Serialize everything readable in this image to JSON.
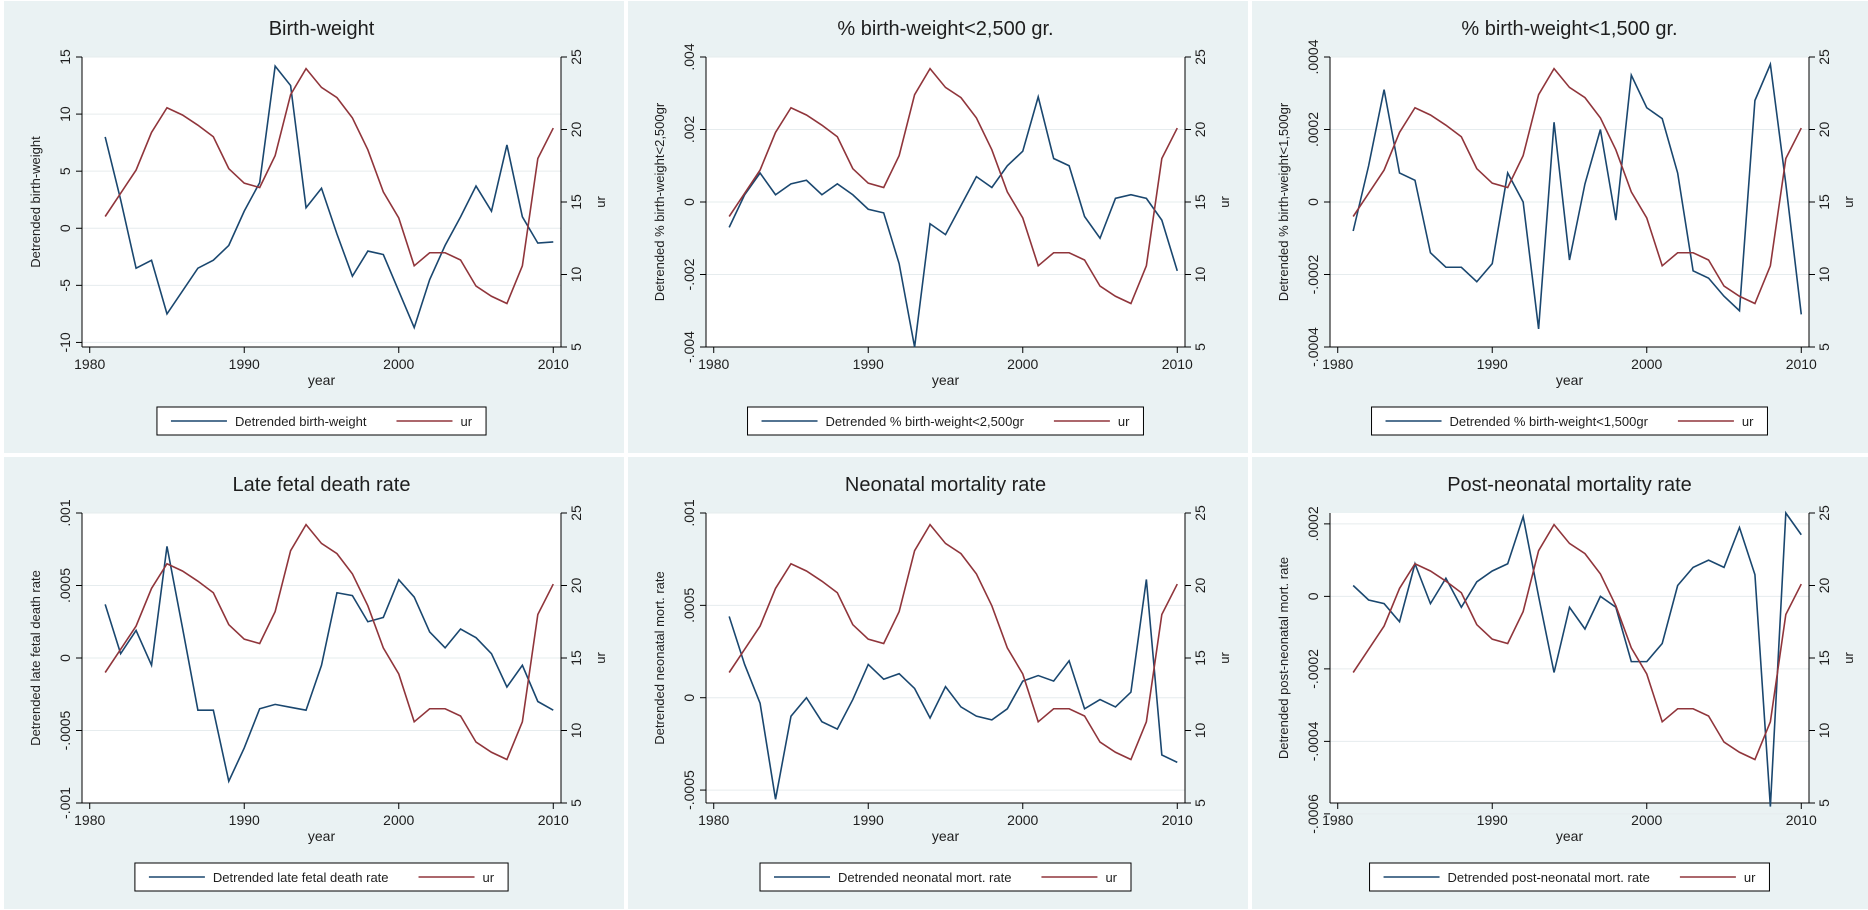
{
  "chart_data": [
    {
      "type": "line",
      "title": "Birth-weight",
      "xlabel": "year",
      "ylabel": "Detrended birth-weight",
      "y2label": "ur",
      "x": [
        1981,
        1982,
        1983,
        1984,
        1985,
        1986,
        1987,
        1988,
        1989,
        1990,
        1991,
        1992,
        1993,
        1994,
        1995,
        1996,
        1997,
        1998,
        1999,
        2000,
        2001,
        2002,
        2003,
        2004,
        2005,
        2006,
        2007,
        2008,
        2009,
        2010
      ],
      "xlim": [
        1979.5,
        2010.5
      ],
      "xticks": [
        1980,
        1990,
        2000,
        2010
      ],
      "ylim": [
        -10.4,
        15
      ],
      "yticks": [
        15,
        10,
        5,
        0,
        -5,
        -10
      ],
      "y2lim": [
        5,
        25
      ],
      "y2ticks": [
        25,
        20,
        15,
        10,
        5
      ],
      "grid": true,
      "legend": "bottom",
      "series": [
        {
          "name": "Detrended birth-weight",
          "color": "#1a476f",
          "values": [
            8,
            2.5,
            -3.5,
            -2.8,
            -7.5,
            -5.5,
            -3.5,
            -2.8,
            -1.5,
            1.5,
            4,
            14.2,
            12.5,
            1.8,
            3.5,
            -0.5,
            -4.2,
            -2,
            -2.3,
            -5.5,
            -8.7,
            -4.5,
            -1.5,
            1,
            3.7,
            1.5,
            7.3,
            1,
            -1.3,
            -1.2
          ]
        },
        {
          "name": "ur",
          "color": "#90353b",
          "axis": "y2",
          "values": [
            14,
            15.6,
            17.2,
            19.8,
            21.5,
            21,
            20.3,
            19.5,
            17.3,
            16.3,
            16,
            18.2,
            22.4,
            24.2,
            22.9,
            22.2,
            20.8,
            18.6,
            15.7,
            13.9,
            10.6,
            11.5,
            11.5,
            11,
            9.2,
            8.5,
            8,
            10.6,
            18,
            20.1
          ]
        }
      ]
    },
    {
      "type": "line",
      "title": "% birth-weight<2,500 gr.",
      "xlabel": "year",
      "ylabel": "Detrended % birth-weight<2,500gr",
      "y2label": "ur",
      "x": [
        1981,
        1982,
        1983,
        1984,
        1985,
        1986,
        1987,
        1988,
        1989,
        1990,
        1991,
        1992,
        1993,
        1994,
        1995,
        1996,
        1997,
        1998,
        1999,
        2000,
        2001,
        2002,
        2003,
        2004,
        2005,
        2006,
        2007,
        2008,
        2009,
        2010
      ],
      "xlim": [
        1979.5,
        2010.5
      ],
      "xticks": [
        1980,
        1990,
        2000,
        2010
      ],
      "ylim": [
        -0.004,
        0.004
      ],
      "yticks": [
        {
          "value": 0.004,
          "label": ".004"
        },
        {
          "value": 0.002,
          "label": ".002"
        },
        0,
        {
          "value": -0.002,
          "label": "-.002"
        },
        {
          "value": -0.004,
          "label": "-.004"
        }
      ],
      "y2lim": [
        5,
        25
      ],
      "y2ticks": [
        25,
        20,
        15,
        10,
        5
      ],
      "grid": true,
      "legend": "bottom",
      "series": [
        {
          "name": "Detrended % birth-weight<2,500gr",
          "color": "#1a476f",
          "values": [
            -0.0007,
            0.0002,
            0.0008,
            0.0002,
            0.0005,
            0.0006,
            0.0002,
            0.0005,
            0.0002,
            -0.0002,
            -0.0003,
            -0.0017,
            -0.004,
            -0.0006,
            -0.0009,
            -0.0001,
            0.0007,
            0.0004,
            0.001,
            0.0014,
            0.0029,
            0.0012,
            0.001,
            -0.0004,
            -0.001,
            0.0001,
            0.0002,
            0.0001,
            -0.0005,
            -0.0019
          ]
        },
        {
          "name": "ur",
          "color": "#90353b",
          "axis": "y2",
          "values": [
            14,
            15.6,
            17.2,
            19.8,
            21.5,
            21,
            20.3,
            19.5,
            17.3,
            16.3,
            16,
            18.2,
            22.4,
            24.2,
            22.9,
            22.2,
            20.8,
            18.6,
            15.7,
            13.9,
            10.6,
            11.5,
            11.5,
            11,
            9.2,
            8.5,
            8,
            10.6,
            18,
            20.1
          ]
        }
      ]
    },
    {
      "type": "line",
      "title": "% birth-weight<1,500 gr.",
      "xlabel": "year",
      "ylabel": "Detrended % birth-weight<1,500gr",
      "y2label": "ur",
      "x": [
        1981,
        1982,
        1983,
        1984,
        1985,
        1986,
        1987,
        1988,
        1989,
        1990,
        1991,
        1992,
        1993,
        1994,
        1995,
        1996,
        1997,
        1998,
        1999,
        2000,
        2001,
        2002,
        2003,
        2004,
        2005,
        2006,
        2007,
        2008,
        2009,
        2010
      ],
      "xlim": [
        1979.5,
        2010.5
      ],
      "xticks": [
        1980,
        1990,
        2000,
        2010
      ],
      "ylim": [
        -0.0004,
        0.0004
      ],
      "yticks": [
        {
          "value": 0.0004,
          "label": ".0004"
        },
        {
          "value": 0.0002,
          "label": ".0002"
        },
        0,
        {
          "value": -0.0002,
          "label": "-.0002"
        },
        {
          "value": -0.0004,
          "label": "-.0004"
        }
      ],
      "y2lim": [
        5,
        25
      ],
      "y2ticks": [
        25,
        20,
        15,
        10,
        5
      ],
      "grid": true,
      "legend": "bottom",
      "series": [
        {
          "name": "Detrended % birth-weight<1,500gr",
          "color": "#1a476f",
          "values": [
            -8e-05,
            0.0001,
            0.00031,
            8e-05,
            6e-05,
            -0.00014,
            -0.00018,
            -0.00018,
            -0.00022,
            -0.00017,
            8e-05,
            0,
            -0.00035,
            0.00022,
            -0.00016,
            5e-05,
            0.0002,
            -5e-05,
            0.00035,
            0.00026,
            0.00023,
            8e-05,
            -0.00019,
            -0.00021,
            -0.00026,
            -0.0003,
            0.00028,
            0.00038,
            5e-05,
            -0.00031
          ]
        },
        {
          "name": "ur",
          "color": "#90353b",
          "axis": "y2",
          "values": [
            14,
            15.6,
            17.2,
            19.8,
            21.5,
            21,
            20.3,
            19.5,
            17.3,
            16.3,
            16,
            18.2,
            22.4,
            24.2,
            22.9,
            22.2,
            20.8,
            18.6,
            15.7,
            13.9,
            10.6,
            11.5,
            11.5,
            11,
            9.2,
            8.5,
            8,
            10.6,
            18,
            20.1
          ]
        }
      ]
    },
    {
      "type": "line",
      "title": "Late fetal death rate",
      "xlabel": "year",
      "ylabel": "Detrended late fetal death rate",
      "y2label": "ur",
      "x": [
        1981,
        1982,
        1983,
        1984,
        1985,
        1986,
        1987,
        1988,
        1989,
        1990,
        1991,
        1992,
        1993,
        1994,
        1995,
        1996,
        1997,
        1998,
        1999,
        2000,
        2001,
        2002,
        2003,
        2004,
        2005,
        2006,
        2007,
        2008,
        2009,
        2010
      ],
      "xlim": [
        1979.5,
        2010.5
      ],
      "xticks": [
        1980,
        1990,
        2000,
        2010
      ],
      "ylim": [
        -0.001,
        0.001
      ],
      "yticks": [
        {
          "value": 0.001,
          "label": ".001"
        },
        {
          "value": 0.0005,
          "label": ".0005"
        },
        0,
        {
          "value": -0.0005,
          "label": "-.0005"
        },
        {
          "value": -0.001,
          "label": "-.001"
        }
      ],
      "y2lim": [
        5,
        25
      ],
      "y2ticks": [
        25,
        20,
        15,
        10,
        5
      ],
      "grid": true,
      "legend": "bottom",
      "series": [
        {
          "name": "Detrended late fetal death rate",
          "color": "#1a476f",
          "values": [
            0.00037,
            3e-05,
            0.00019,
            -5e-05,
            0.00077,
            0.00021,
            -0.00036,
            -0.00036,
            -0.00085,
            -0.00062,
            -0.00035,
            -0.00032,
            -0.00034,
            -0.00036,
            -5e-05,
            0.00045,
            0.00043,
            0.00025,
            0.00028,
            0.00054,
            0.00042,
            0.00018,
            7e-05,
            0.0002,
            0.00014,
            3e-05,
            -0.0002,
            -5e-05,
            -0.0003,
            -0.00036
          ]
        },
        {
          "name": "ur",
          "color": "#90353b",
          "axis": "y2",
          "values": [
            14,
            15.6,
            17.2,
            19.8,
            21.5,
            21,
            20.3,
            19.5,
            17.3,
            16.3,
            16,
            18.2,
            22.4,
            24.2,
            22.9,
            22.2,
            20.8,
            18.6,
            15.7,
            13.9,
            10.6,
            11.5,
            11.5,
            11,
            9.2,
            8.5,
            8,
            10.6,
            18,
            20.1
          ]
        }
      ]
    },
    {
      "type": "line",
      "title": "Neonatal mortality rate",
      "xlabel": "year",
      "ylabel": "Detrended neonatal mort. rate",
      "y2label": "ur",
      "x": [
        1981,
        1982,
        1983,
        1984,
        1985,
        1986,
        1987,
        1988,
        1989,
        1990,
        1991,
        1992,
        1993,
        1994,
        1995,
        1996,
        1997,
        1998,
        1999,
        2000,
        2001,
        2002,
        2003,
        2004,
        2005,
        2006,
        2007,
        2008,
        2009,
        2010
      ],
      "xlim": [
        1979.5,
        2010.5
      ],
      "xticks": [
        1980,
        1990,
        2000,
        2010
      ],
      "ylim": [
        -0.00057,
        0.001
      ],
      "yticks": [
        {
          "value": 0.001,
          "label": ".001"
        },
        {
          "value": 0.0005,
          "label": ".0005"
        },
        0,
        {
          "value": -0.0005,
          "label": "-.0005"
        }
      ],
      "y2lim": [
        5,
        25
      ],
      "y2ticks": [
        25,
        20,
        15,
        10,
        5
      ],
      "grid": true,
      "legend": "bottom",
      "series": [
        {
          "name": "Detrended neonatal mort. rate",
          "color": "#1a476f",
          "values": [
            0.00044,
            0.00018,
            -3e-05,
            -0.00055,
            -0.0001,
            0,
            -0.00013,
            -0.00017,
            -1e-05,
            0.00018,
            0.0001,
            0.00013,
            5e-05,
            -0.00011,
            6e-05,
            -5e-05,
            -0.0001,
            -0.00012,
            -6e-05,
            9e-05,
            0.00012,
            9e-05,
            0.0002,
            -6e-05,
            -1e-05,
            -5e-05,
            3e-05,
            0.00064,
            -0.00031,
            -0.00035
          ]
        },
        {
          "name": "ur",
          "color": "#90353b",
          "axis": "y2",
          "values": [
            14,
            15.6,
            17.2,
            19.8,
            21.5,
            21,
            20.3,
            19.5,
            17.3,
            16.3,
            16,
            18.2,
            22.4,
            24.2,
            22.9,
            22.2,
            20.8,
            18.6,
            15.7,
            13.9,
            10.6,
            11.5,
            11.5,
            11,
            9.2,
            8.5,
            8,
            10.6,
            18,
            20.1
          ]
        }
      ]
    },
    {
      "type": "line",
      "title": "Post-neonatal mortality rate",
      "xlabel": "year",
      "ylabel": "Detrended post-neonatal mort. rate",
      "y2label": "ur",
      "x": [
        1981,
        1982,
        1983,
        1984,
        1985,
        1986,
        1987,
        1988,
        1989,
        1990,
        1991,
        1992,
        1993,
        1994,
        1995,
        1996,
        1997,
        1998,
        1999,
        2000,
        2001,
        2002,
        2003,
        2004,
        2005,
        2006,
        2007,
        2008,
        2009,
        2010
      ],
      "xlim": [
        1979.5,
        2010.5
      ],
      "xticks": [
        1980,
        1990,
        2000,
        2010
      ],
      "ylim": [
        -0.00057,
        0.00023
      ],
      "yticks": [
        {
          "value": 0.0002,
          "label": ".0002"
        },
        0,
        {
          "value": -0.0002,
          "label": "-.0002"
        },
        {
          "value": -0.0004,
          "label": "-.0004"
        },
        {
          "value": -0.0006,
          "label": "-.0006"
        }
      ],
      "y2lim": [
        5,
        25
      ],
      "y2ticks": [
        25,
        20,
        15,
        10,
        5
      ],
      "grid": true,
      "legend": "bottom",
      "series": [
        {
          "name": "Detrended post-neonatal mort. rate",
          "color": "#1a476f",
          "values": [
            3e-05,
            -1e-05,
            -2e-05,
            -7e-05,
            9e-05,
            -2e-05,
            5e-05,
            -3e-05,
            4e-05,
            7e-05,
            9e-05,
            0.00022,
            0,
            -0.00021,
            -3e-05,
            -9e-05,
            0,
            -3e-05,
            -0.00018,
            -0.00018,
            -0.00013,
            3e-05,
            8e-05,
            0.0001,
            8e-05,
            0.00019,
            6e-05,
            -0.00058,
            0.00023,
            0.00017
          ]
        },
        {
          "name": "ur",
          "color": "#90353b",
          "axis": "y2",
          "values": [
            14,
            15.6,
            17.2,
            19.8,
            21.5,
            21,
            20.3,
            19.5,
            17.3,
            16.3,
            16,
            18.2,
            22.4,
            24.2,
            22.9,
            22.2,
            20.8,
            18.6,
            15.7,
            13.9,
            10.6,
            11.5,
            11.5,
            11,
            9.2,
            8.5,
            8,
            10.6,
            18,
            20.1
          ]
        }
      ]
    }
  ]
}
